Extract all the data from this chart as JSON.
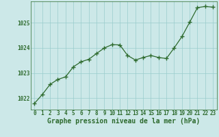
{
  "x": [
    0,
    1,
    2,
    3,
    4,
    5,
    6,
    7,
    8,
    9,
    10,
    11,
    12,
    13,
    14,
    15,
    16,
    17,
    18,
    19,
    20,
    21,
    22,
    23
  ],
  "y": [
    1021.8,
    1022.15,
    1022.55,
    1022.75,
    1022.85,
    1023.25,
    1023.45,
    1023.55,
    1023.78,
    1024.0,
    1024.13,
    1024.12,
    1023.7,
    1023.52,
    1023.62,
    1023.7,
    1023.62,
    1023.58,
    1024.0,
    1024.45,
    1025.02,
    1025.6,
    1025.65,
    1025.62
  ],
  "line_color": "#2d6a2d",
  "marker_color": "#2d6a2d",
  "bg_color": "#cce8e8",
  "grid_color": "#99cccc",
  "axis_color": "#2d6a2d",
  "tick_color": "#2d6a2d",
  "xlabel": "Graphe pression niveau de la mer (hPa)",
  "xlabel_color": "#2d6a2d",
  "ylim": [
    1021.55,
    1025.85
  ],
  "yticks": [
    1022,
    1023,
    1024,
    1025
  ],
  "xticks": [
    0,
    1,
    2,
    3,
    4,
    5,
    6,
    7,
    8,
    9,
    10,
    11,
    12,
    13,
    14,
    15,
    16,
    17,
    18,
    19,
    20,
    21,
    22,
    23
  ],
  "tick_fontsize": 5.5,
  "xlabel_fontsize": 7.0,
  "marker_size": 4,
  "line_width": 0.9
}
